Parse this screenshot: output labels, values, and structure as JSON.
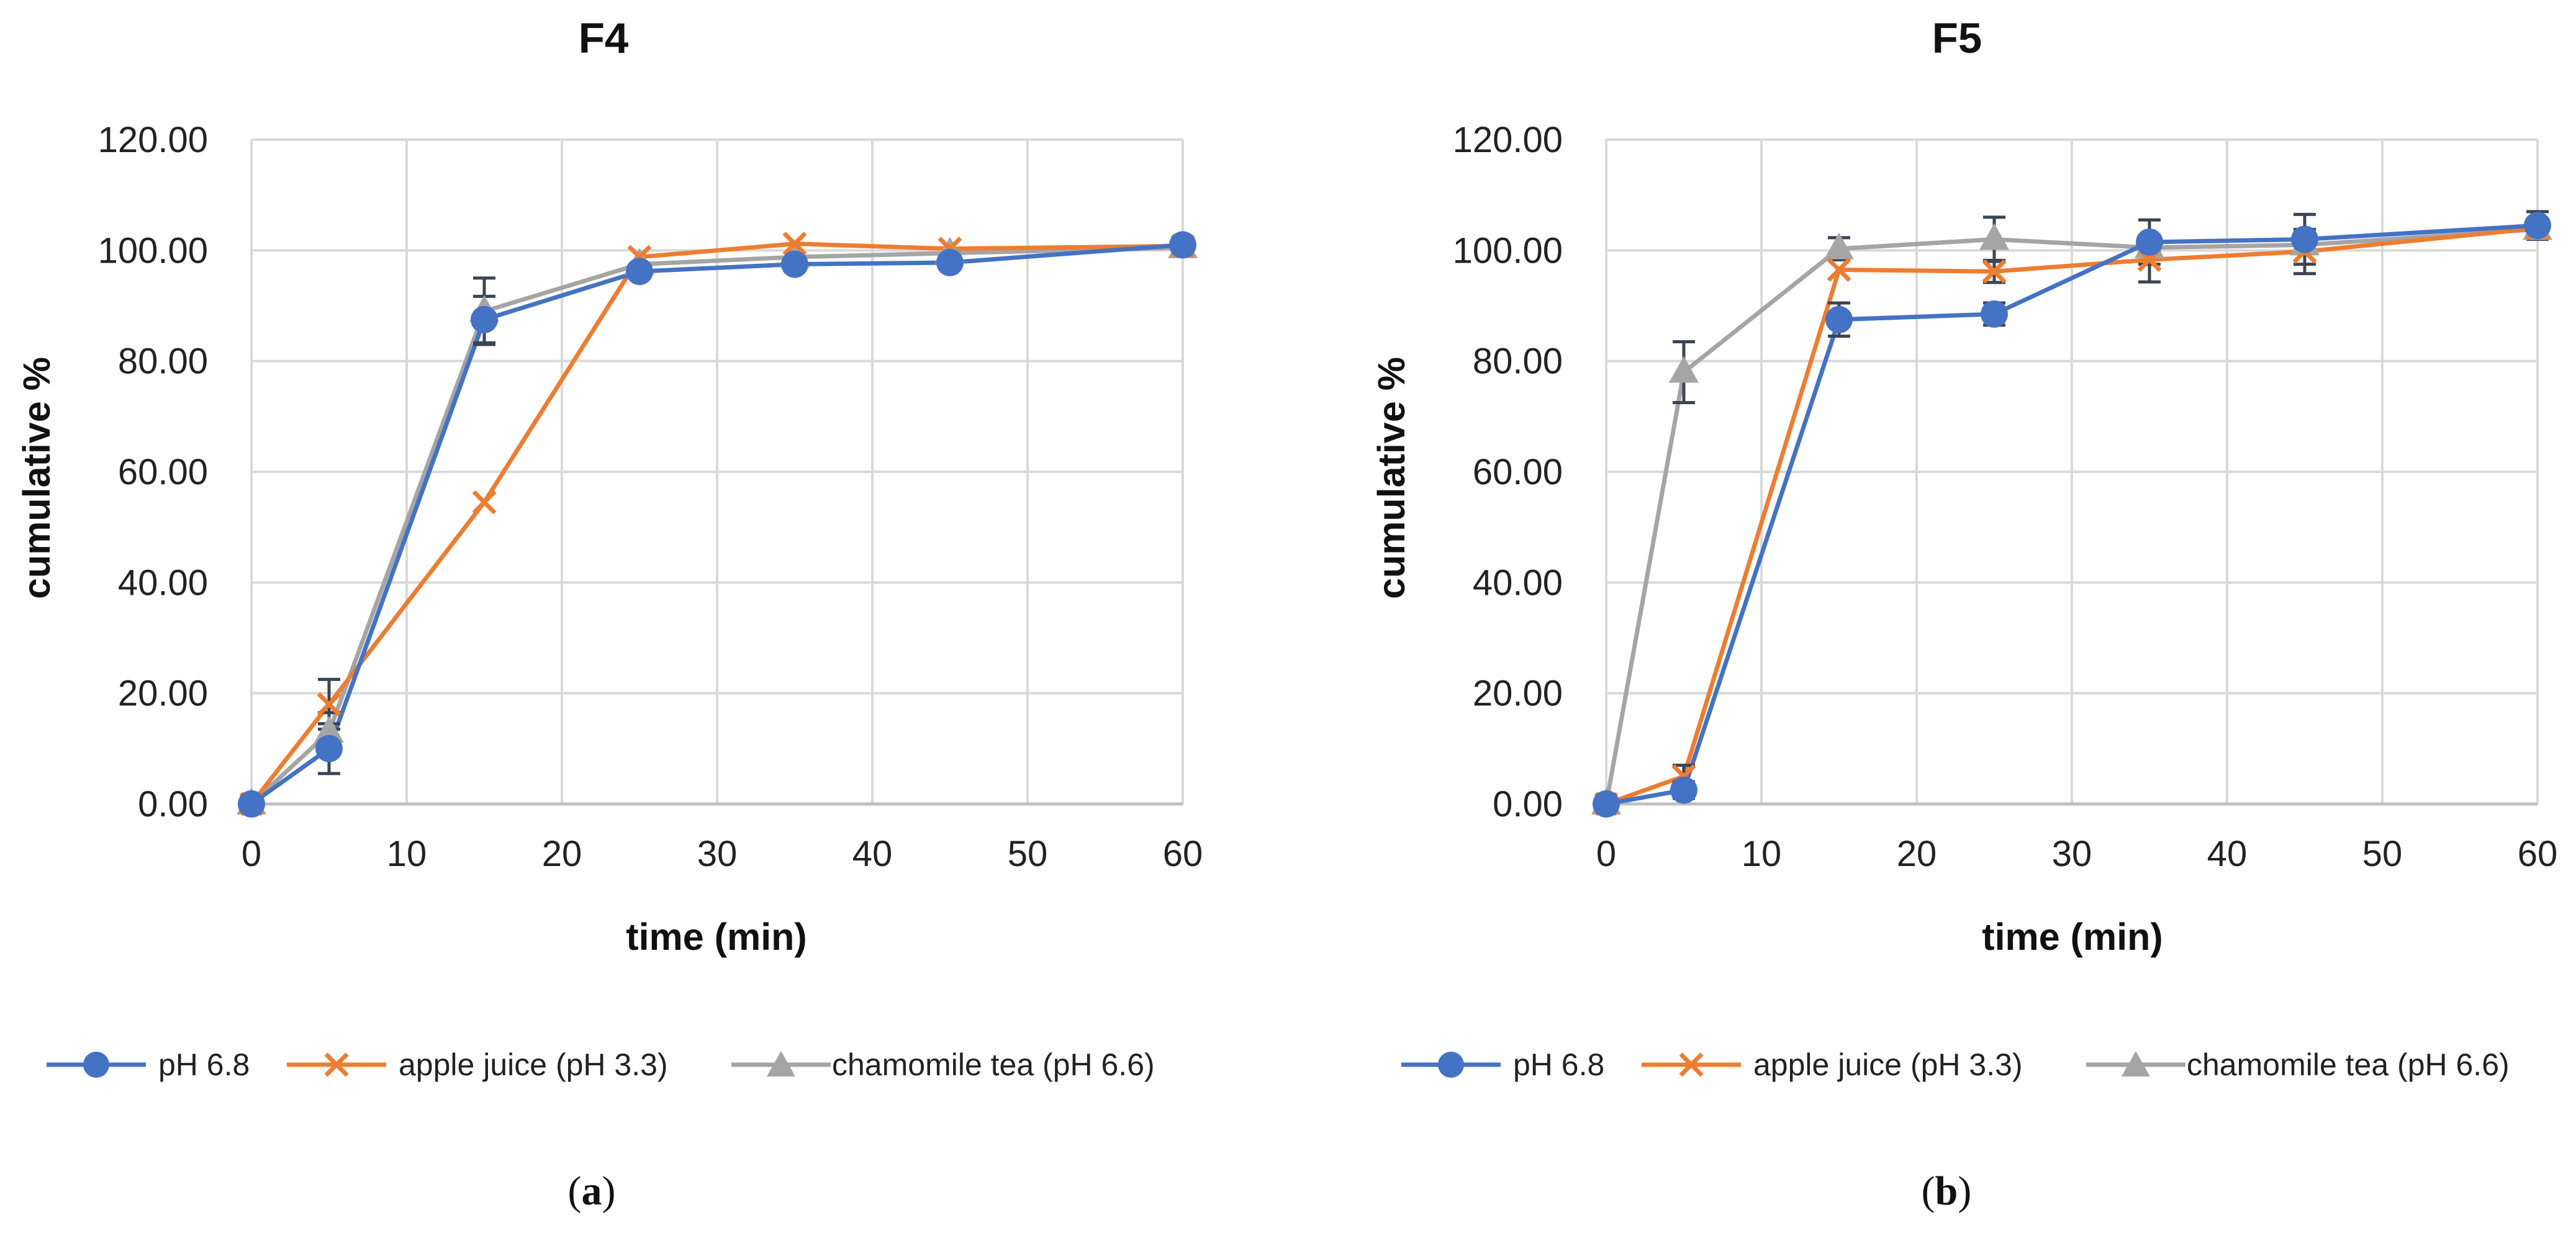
{
  "chart_data": [
    {
      "type": "line",
      "title": "F4",
      "xlabel": "time (min)",
      "ylabel": "cumulative %",
      "xlim": [
        0,
        60
      ],
      "ylim": [
        0,
        120
      ],
      "x_ticks": [
        "0",
        "10",
        "20",
        "30",
        "40",
        "50",
        "60"
      ],
      "y_ticks": [
        "0.00",
        "20.00",
        "40.00",
        "60.00",
        "80.00",
        "100.00",
        "120.00"
      ],
      "grid": true,
      "legend_position": "bottom",
      "caption_letter": "a",
      "x": [
        0,
        5,
        15,
        25,
        35,
        45,
        60
      ],
      "series": [
        {
          "name": "pH 6.8",
          "marker": "circle",
          "color": "#4472C4",
          "values": [
            0,
            10,
            87.5,
            96.2,
            97.5,
            97.8,
            101.0
          ],
          "errors": [
            0,
            4.5,
            4.2,
            0,
            0,
            0,
            0
          ]
        },
        {
          "name": "apple juice (pH 3.3)",
          "marker": "x",
          "color": "#ED7D31",
          "values": [
            0,
            18,
            54.5,
            98.8,
            101.2,
            100.3,
            100.8
          ],
          "errors": [
            0,
            4.5,
            0,
            0,
            0,
            0,
            0
          ]
        },
        {
          "name": "chamomile tea (pH 6.6)",
          "marker": "triangle",
          "color": "#A5A5A5",
          "values": [
            0,
            13,
            89.0,
            97.5,
            98.8,
            99.5,
            100.5
          ],
          "errors": [
            0,
            3.5,
            6.0,
            0,
            0,
            0,
            0
          ]
        }
      ]
    },
    {
      "type": "line",
      "title": "F5",
      "xlabel": "time (min)",
      "ylabel": "cumulative %",
      "xlim": [
        0,
        60
      ],
      "ylim": [
        0,
        120
      ],
      "x_ticks": [
        "0",
        "10",
        "20",
        "30",
        "40",
        "50",
        "60"
      ],
      "y_ticks": [
        "0.00",
        "20.00",
        "40.00",
        "60.00",
        "80.00",
        "100.00",
        "120.00"
      ],
      "grid": true,
      "legend_position": "bottom",
      "caption_letter": "b",
      "x": [
        0,
        5,
        15,
        25,
        35,
        45,
        60
      ],
      "series": [
        {
          "name": "pH 6.8",
          "marker": "circle",
          "color": "#4472C4",
          "values": [
            0,
            2.5,
            87.5,
            88.5,
            101.5,
            102.0,
            104.5
          ],
          "errors": [
            0,
            1.5,
            3.0,
            2.0,
            4.0,
            4.5,
            2.5
          ]
        },
        {
          "name": "apple juice (pH 3.3)",
          "marker": "x",
          "color": "#ED7D31",
          "values": [
            0,
            5.0,
            96.5,
            96.2,
            98.3,
            99.8,
            104.0
          ],
          "errors": [
            0,
            2.0,
            0,
            2.0,
            4.0,
            4.0,
            0
          ]
        },
        {
          "name": "chamomile tea (pH 6.6)",
          "marker": "triangle",
          "color": "#A5A5A5",
          "values": [
            0,
            78.0,
            100.3,
            102.0,
            100.5,
            101.0,
            103.8
          ],
          "errors": [
            0,
            5.5,
            2.0,
            4.0,
            0,
            0,
            0
          ]
        }
      ]
    }
  ]
}
